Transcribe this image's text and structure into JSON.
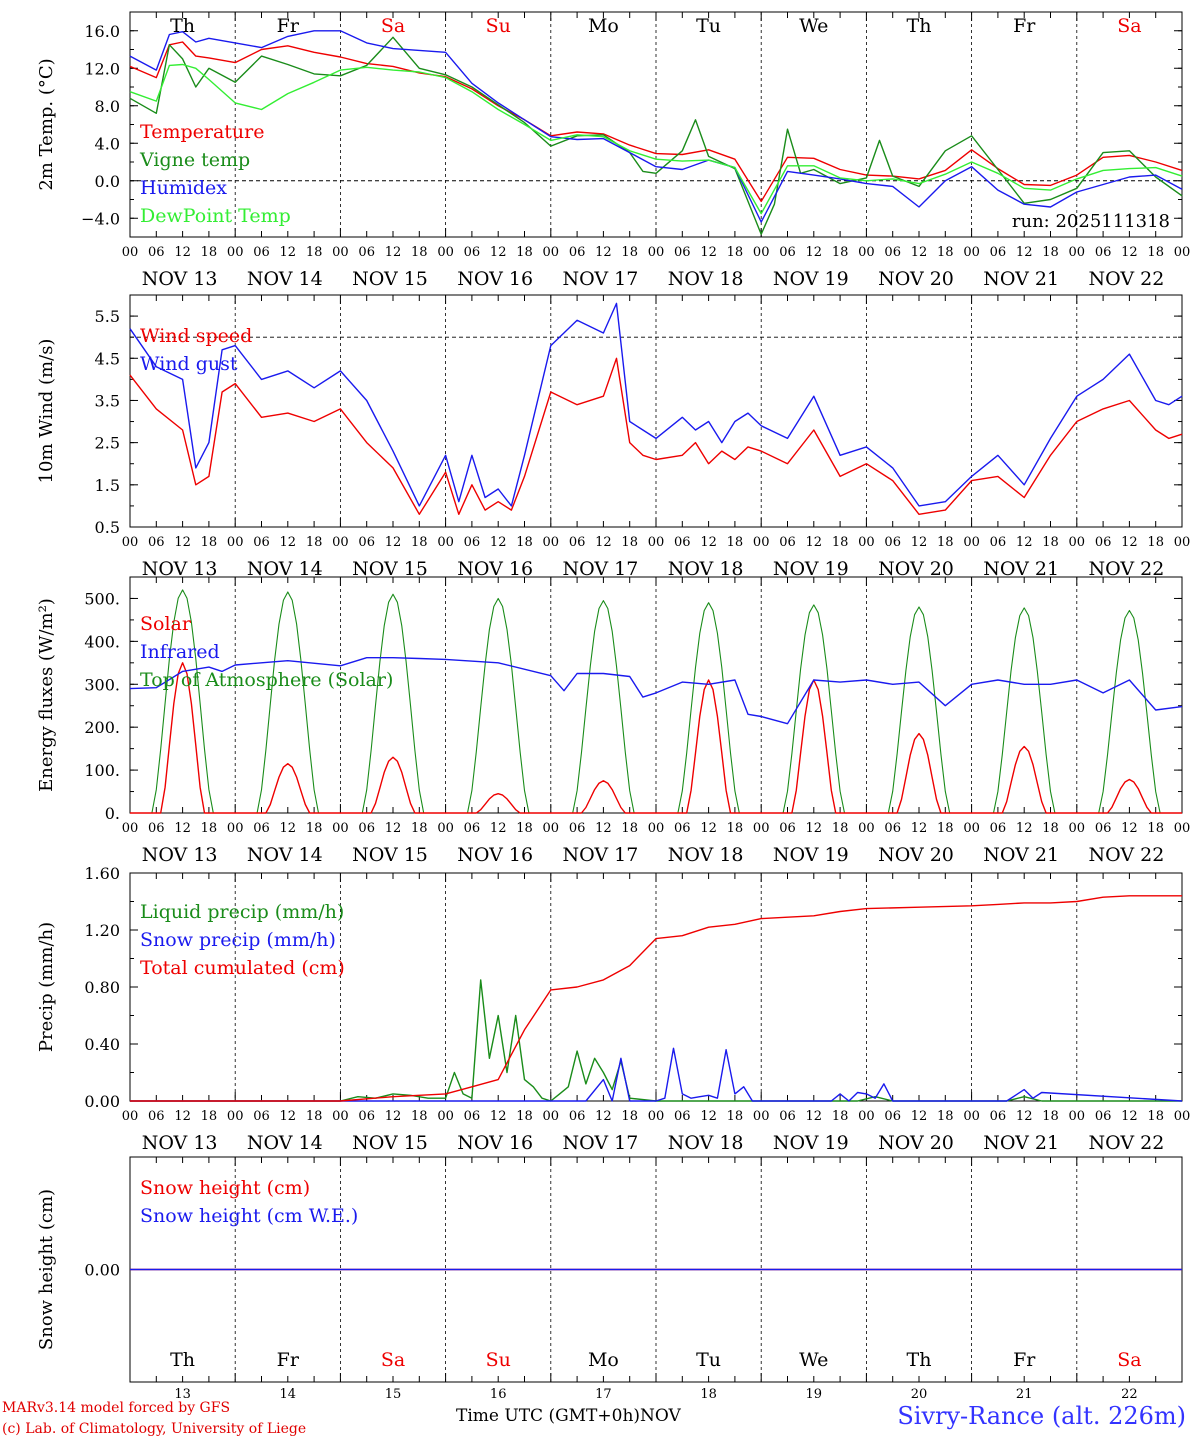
{
  "colors": {
    "red": "#ee0000",
    "green": "#1a8c1a",
    "blue": "#1a1aee",
    "lightgreen": "#33ee33",
    "grid": "#000000"
  },
  "days": {
    "labels": [
      "Th",
      "Fr",
      "Sa",
      "Su",
      "Mo",
      "Tu",
      "We",
      "Th",
      "Fr",
      "Sa"
    ],
    "colors": [
      "#000000",
      "#000000",
      "#ee0000",
      "#ee0000",
      "#000000",
      "#000000",
      "#000000",
      "#000000",
      "#000000",
      "#ee0000"
    ],
    "dates": [
      "NOV 13",
      "NOV 14",
      "NOV 15",
      "NOV 16",
      "NOV 17",
      "NOV 18",
      "NOV 19",
      "NOV 20",
      "NOV 21",
      "NOV 22"
    ],
    "numbers": [
      "13",
      "14",
      "15",
      "16",
      "17",
      "18",
      "19",
      "20",
      "21",
      "22"
    ],
    "hour_ticks": [
      "00",
      "06",
      "12",
      "18"
    ],
    "final_tick": "00"
  },
  "footer": {
    "model": "MARv3.14 model forced by GFS",
    "lab": "(c) Lab. of Climatology, University of Liege",
    "time_label": "Time UTC (GMT+0h)",
    "month": "NOV",
    "site": "Sivry-Rance (alt. 226m)"
  },
  "chart_data": [
    {
      "id": "temp",
      "type": "line",
      "ylabel": "2m Temp. (°C)",
      "ylim": [
        -6.0,
        18.0
      ],
      "yticks": [
        -4.0,
        0.0,
        4.0,
        8.0,
        12.0,
        16.0
      ],
      "ytick_labels": [
        "−4.0",
        "0.0",
        "4.0",
        "8.0",
        "12.0",
        "16.0"
      ],
      "ref_line": 0.0,
      "annotation": "run: 2025111318",
      "x_unit": "hours since NOV 13 00 UTC",
      "series": [
        {
          "name": "Temperature",
          "color": "#ee0000",
          "x": [
            0,
            6,
            9,
            12,
            15,
            18,
            24,
            30,
            36,
            42,
            48,
            54,
            60,
            66,
            72,
            78,
            84,
            90,
            96,
            102,
            108,
            114,
            120,
            126,
            132,
            138,
            144,
            150,
            156,
            162,
            168,
            174,
            180,
            186,
            192,
            198,
            204,
            210,
            216,
            222,
            228,
            234,
            240
          ],
          "y": [
            12.2,
            11,
            14.5,
            14.8,
            13.3,
            13.1,
            12.6,
            14,
            14.4,
            13.7,
            13.2,
            12.5,
            12.2,
            11.5,
            11.1,
            9.8,
            8,
            6.5,
            4.8,
            5.2,
            5,
            3.8,
            2.9,
            2.8,
            3.3,
            2.3,
            -2.2,
            2.5,
            2.4,
            1.2,
            0.6,
            0.5,
            0.2,
            1.1,
            3.3,
            1.3,
            -0.4,
            -0.5,
            0.6,
            2.5,
            2.7,
            2,
            1.1
          ]
        },
        {
          "name": "Vigne temp",
          "color": "#1a8c1a",
          "x": [
            0,
            6,
            9,
            12,
            15,
            18,
            24,
            30,
            36,
            42,
            48,
            54,
            60,
            66,
            72,
            78,
            84,
            90,
            96,
            102,
            108,
            114,
            117,
            120,
            126,
            129,
            132,
            138,
            144,
            147,
            150,
            153,
            156,
            162,
            168,
            171,
            174,
            180,
            186,
            192,
            198,
            204,
            210,
            216,
            222,
            228,
            234,
            240
          ],
          "y": [
            8.8,
            7.2,
            14.5,
            13,
            10,
            12,
            10.5,
            13.3,
            12.4,
            11.4,
            11.2,
            12.3,
            15.3,
            12,
            11.3,
            10,
            8.1,
            6.2,
            3.7,
            4.8,
            4.9,
            3,
            1,
            0.8,
            3.2,
            6.5,
            2.6,
            1.3,
            -5.7,
            -2.5,
            5.5,
            0.8,
            1.2,
            -0.3,
            0.3,
            4.3,
            0.5,
            -0.6,
            3.2,
            4.8,
            1.2,
            -2.4,
            -2,
            -0.8,
            3,
            3.2,
            0.4,
            -1.6
          ]
        },
        {
          "name": "Humidex",
          "color": "#1a1aee",
          "x": [
            0,
            6,
            9,
            12,
            15,
            18,
            24,
            30,
            36,
            42,
            48,
            54,
            60,
            66,
            72,
            78,
            84,
            90,
            96,
            102,
            108,
            114,
            120,
            126,
            132,
            138,
            144,
            150,
            156,
            162,
            168,
            174,
            180,
            186,
            192,
            198,
            204,
            210,
            216,
            222,
            228,
            234,
            240
          ],
          "y": [
            13.3,
            11.8,
            15.6,
            15.9,
            14.8,
            15.2,
            14.7,
            14.2,
            15.4,
            16,
            16,
            14.7,
            14.1,
            13.9,
            13.7,
            10.4,
            8.3,
            6.5,
            4.7,
            4.4,
            4.5,
            3,
            1.5,
            1.2,
            2.2,
            1.4,
            -4.4,
            1,
            0.6,
            0.2,
            -0.3,
            -0.6,
            -2.8,
            0,
            1.5,
            -1,
            -2.5,
            -2.8,
            -1.2,
            -0.4,
            0.4,
            0.6,
            -0.9
          ]
        },
        {
          "name": "DewPoint Temp",
          "color": "#33ee33",
          "x": [
            0,
            6,
            9,
            12,
            15,
            18,
            24,
            30,
            36,
            42,
            48,
            54,
            60,
            66,
            72,
            78,
            84,
            90,
            96,
            102,
            108,
            114,
            120,
            126,
            132,
            138,
            144,
            150,
            156,
            162,
            168,
            174,
            180,
            186,
            192,
            198,
            204,
            210,
            216,
            222,
            228,
            234,
            240
          ],
          "y": [
            9.5,
            8.5,
            12.3,
            12.4,
            12,
            10.8,
            8.3,
            7.6,
            9.3,
            10.5,
            11.8,
            12.1,
            11.8,
            11.6,
            11,
            9.5,
            7.6,
            6,
            4.3,
            4.9,
            4.7,
            3.2,
            2.3,
            2.1,
            2.2,
            1.4,
            -3.5,
            1.6,
            1.6,
            0.3,
            0,
            0.2,
            -0.3,
            0.7,
            2,
            0.8,
            -0.8,
            -1,
            0.2,
            1.1,
            1.3,
            1.4,
            0.5
          ]
        }
      ]
    },
    {
      "id": "wind",
      "type": "line",
      "ylabel": "10m Wind (m/s)",
      "ylim": [
        0.5,
        6.0
      ],
      "yticks": [
        0.5,
        1.5,
        2.5,
        3.5,
        4.5,
        5.5
      ],
      "ytick_labels": [
        "0.5",
        "1.5",
        "2.5",
        "3.5",
        "4.5",
        "5.5"
      ],
      "ref_line": 5.0,
      "x_unit": "hours since NOV 13 00 UTC",
      "series": [
        {
          "name": "Wind speed",
          "color": "#ee0000",
          "x": [
            0,
            6,
            12,
            15,
            18,
            21,
            24,
            30,
            36,
            42,
            48,
            54,
            60,
            66,
            72,
            75,
            78,
            81,
            84,
            87,
            90,
            96,
            102,
            108,
            111,
            114,
            117,
            120,
            126,
            129,
            132,
            135,
            138,
            141,
            144,
            150,
            156,
            162,
            168,
            174,
            180,
            186,
            192,
            198,
            204,
            210,
            216,
            222,
            228,
            234,
            237,
            240
          ],
          "y": [
            4.1,
            3.3,
            2.8,
            1.5,
            1.7,
            3.7,
            3.9,
            3.1,
            3.2,
            3,
            3.3,
            2.5,
            1.9,
            0.8,
            1.8,
            0.8,
            1.5,
            0.9,
            1.1,
            0.9,
            1.7,
            3.7,
            3.4,
            3.6,
            4.5,
            2.5,
            2.2,
            2.1,
            2.2,
            2.5,
            2.0,
            2.3,
            2.1,
            2.4,
            2.3,
            2,
            2.8,
            1.7,
            2.0,
            1.6,
            0.8,
            0.9,
            1.6,
            1.7,
            1.2,
            2.2,
            3.0,
            3.3,
            3.5,
            2.8,
            2.6,
            2.7
          ]
        },
        {
          "name": "Wind gust",
          "color": "#1a1aee",
          "x": [
            0,
            6,
            12,
            15,
            18,
            21,
            24,
            30,
            36,
            42,
            48,
            54,
            60,
            66,
            72,
            75,
            78,
            81,
            84,
            87,
            90,
            96,
            102,
            108,
            111,
            114,
            117,
            120,
            126,
            129,
            132,
            135,
            138,
            141,
            144,
            150,
            156,
            162,
            168,
            174,
            180,
            186,
            192,
            198,
            204,
            210,
            216,
            222,
            228,
            234,
            237,
            240
          ],
          "y": [
            5.2,
            4.3,
            4,
            1.9,
            2.5,
            4.7,
            4.8,
            4,
            4.2,
            3.8,
            4.2,
            3.5,
            2.3,
            1,
            2.2,
            1.1,
            2.2,
            1.2,
            1.4,
            1.0,
            2.2,
            4.8,
            5.4,
            5.1,
            5.8,
            3,
            2.8,
            2.6,
            3.1,
            2.8,
            3,
            2.5,
            3.0,
            3.2,
            2.9,
            2.6,
            3.6,
            2.2,
            2.4,
            1.9,
            1.0,
            1.1,
            1.7,
            2.2,
            1.5,
            2.6,
            3.6,
            4,
            4.6,
            3.5,
            3.4,
            3.6
          ]
        }
      ]
    },
    {
      "id": "energy",
      "type": "line",
      "ylabel": "Energy fluxes (W/m²)",
      "ylim": [
        0,
        550
      ],
      "yticks": [
        0,
        100,
        200,
        300,
        400,
        500
      ],
      "ytick_labels": [
        "0.",
        "100.",
        "200.",
        "300.",
        "400.",
        "500."
      ],
      "x_unit": "hours since NOV 13 00 UTC",
      "series": [
        {
          "name": "Solar",
          "color": "#ee0000",
          "peaks": [
            350,
            115,
            130,
            45,
            75,
            310,
            310,
            185,
            155,
            78
          ]
        },
        {
          "name": "Infrared",
          "color": "#1a1aee",
          "x": [
            0,
            6,
            12,
            18,
            21,
            24,
            30,
            36,
            48,
            54,
            60,
            66,
            72,
            84,
            96,
            99,
            102,
            108,
            114,
            117,
            120,
            126,
            132,
            138,
            141,
            144,
            150,
            156,
            162,
            168,
            174,
            180,
            186,
            192,
            198,
            204,
            210,
            216,
            222,
            228,
            234,
            240
          ],
          "y": [
            290,
            292,
            330,
            340,
            330,
            345,
            350,
            355,
            343,
            362,
            362,
            360,
            358,
            350,
            320,
            285,
            325,
            325,
            318,
            270,
            280,
            305,
            300,
            310,
            230,
            225,
            208,
            310,
            305,
            310,
            300,
            305,
            250,
            300,
            310,
            300,
            300,
            310,
            280,
            310,
            240,
            248
          ]
        },
        {
          "name": "Top of Atmosphere (Solar)",
          "color": "#1a8c1a",
          "peaks": [
            520,
            515,
            510,
            500,
            495,
            490,
            485,
            480,
            478,
            472
          ]
        }
      ]
    },
    {
      "id": "precip",
      "type": "line",
      "ylabel": "Precip (mm/h)",
      "ylim": [
        0.0,
        1.6
      ],
      "yticks": [
        0.0,
        0.4,
        0.8,
        1.2,
        1.6
      ],
      "ytick_labels": [
        "0.00",
        "0.40",
        "0.80",
        "1.20",
        "1.60"
      ],
      "x_unit": "hours since NOV 13 00 UTC",
      "series": [
        {
          "name": "Liquid precip (mm/h)",
          "color": "#1a8c1a",
          "x": [
            0,
            48,
            52,
            56,
            60,
            64,
            68,
            72,
            74,
            76,
            78,
            80,
            82,
            84,
            86,
            88,
            90,
            92,
            94,
            96,
            98,
            100,
            102,
            104,
            106,
            108,
            110,
            112,
            114,
            120,
            144,
            166,
            170,
            174,
            200,
            204,
            208,
            240
          ],
          "y": [
            0,
            0,
            0.03,
            0.02,
            0.05,
            0.04,
            0.02,
            0.02,
            0.2,
            0.05,
            0.02,
            0.85,
            0.3,
            0.6,
            0.2,
            0.6,
            0.15,
            0.1,
            0.02,
            0,
            0.05,
            0.1,
            0.35,
            0.12,
            0.3,
            0.2,
            0.08,
            0.28,
            0.02,
            0,
            0,
            0,
            0.03,
            0,
            0,
            0.03,
            0,
            0
          ]
        },
        {
          "name": "Snow precip (mm/h)",
          "color": "#1a1aee",
          "x": [
            0,
            104,
            108,
            110,
            112,
            114,
            120,
            122,
            124,
            126,
            128,
            130,
            132,
            134,
            136,
            138,
            140,
            142,
            144,
            160,
            162,
            164,
            166,
            168,
            170,
            172,
            174,
            200,
            204,
            206,
            208,
            240
          ],
          "y": [
            0,
            0,
            0.15,
            0,
            0.3,
            0,
            0,
            0.02,
            0.37,
            0.05,
            0.02,
            0.03,
            0.04,
            0.02,
            0.36,
            0.05,
            0.1,
            0,
            0,
            0,
            0.05,
            0,
            0.06,
            0.05,
            0.02,
            0.12,
            0,
            0,
            0.08,
            0.02,
            0.06,
            0
          ]
        },
        {
          "name": "Total cumulated (cm)",
          "color": "#ee0000",
          "x": [
            0,
            48,
            60,
            72,
            78,
            84,
            90,
            96,
            102,
            108,
            114,
            120,
            126,
            132,
            138,
            144,
            150,
            156,
            162,
            168,
            180,
            192,
            198,
            204,
            210,
            216,
            222,
            228,
            240
          ],
          "y": [
            0,
            0,
            0.03,
            0.05,
            0.1,
            0.15,
            0.5,
            0.78,
            0.8,
            0.85,
            0.95,
            1.14,
            1.16,
            1.22,
            1.24,
            1.28,
            1.29,
            1.3,
            1.33,
            1.35,
            1.36,
            1.37,
            1.38,
            1.39,
            1.39,
            1.4,
            1.43,
            1.44,
            1.44
          ]
        }
      ]
    },
    {
      "id": "snow",
      "type": "line",
      "ylabel": "Snow height (cm)",
      "ylim": [
        -1,
        1
      ],
      "yticks": [
        0.0
      ],
      "ytick_labels": [
        "0.00"
      ],
      "x_unit": "hours since NOV 13 00 UTC",
      "series": [
        {
          "name": "Snow height (cm)",
          "color": "#ee0000",
          "x": [
            0,
            240
          ],
          "y": [
            0,
            0
          ]
        },
        {
          "name": "Snow height (cm W.E.)",
          "color": "#1a1aee",
          "x": [
            0,
            240
          ],
          "y": [
            0,
            0
          ]
        }
      ]
    }
  ]
}
